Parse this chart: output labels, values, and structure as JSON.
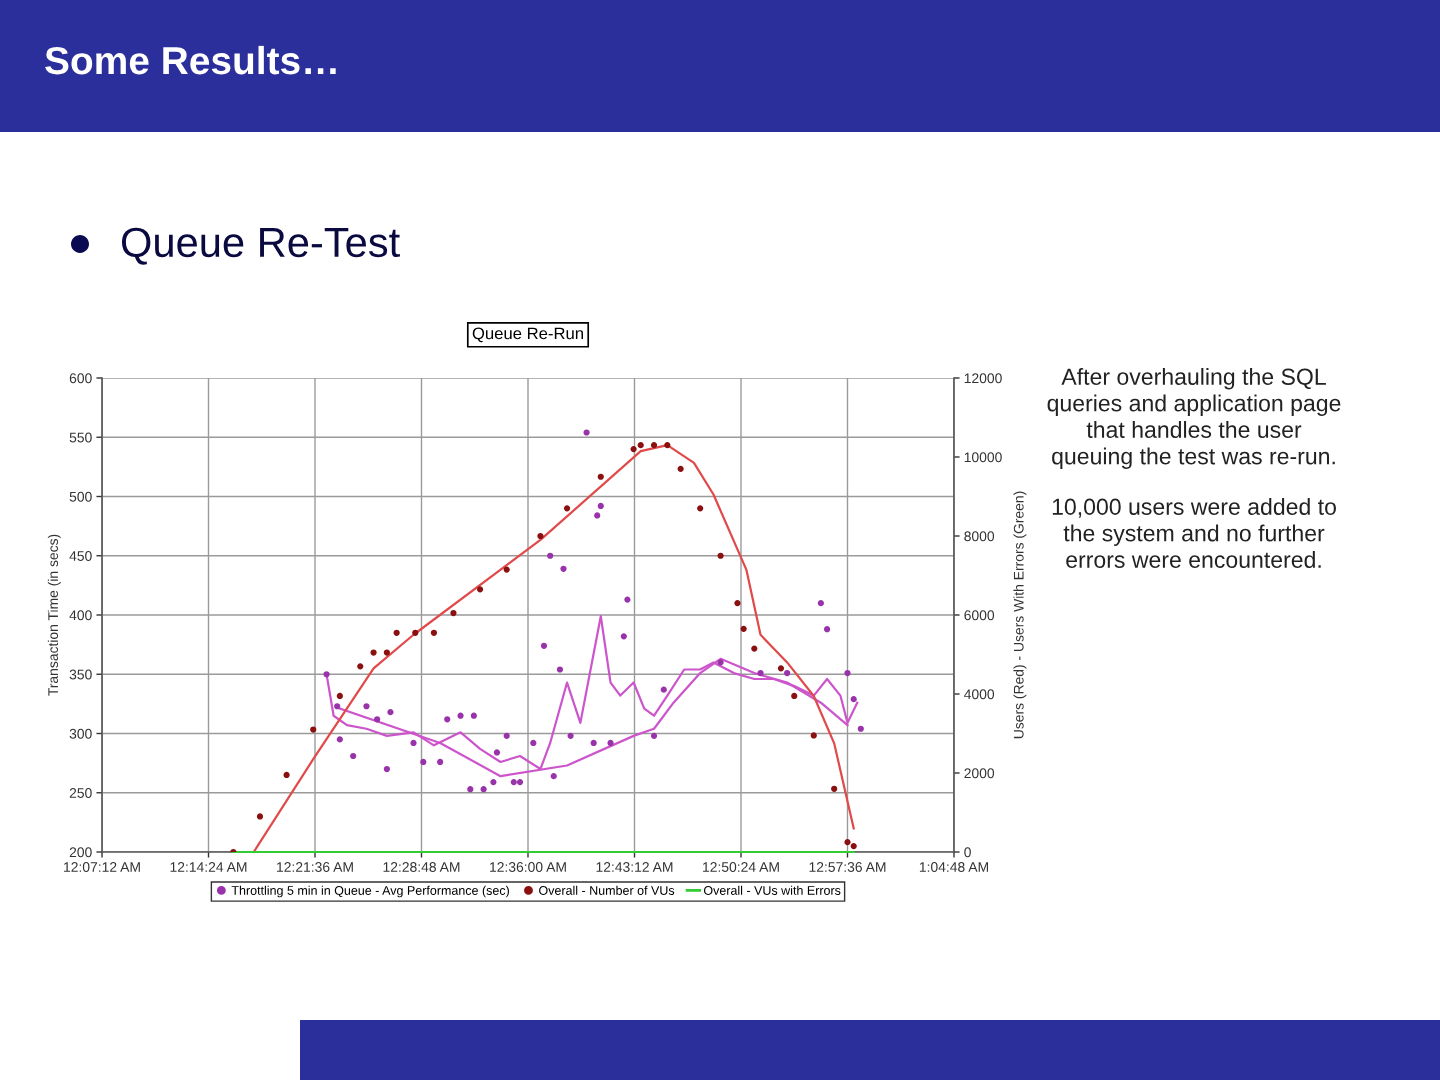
{
  "chart_data": {
    "type": "scatter",
    "title": "Queue Re-Run",
    "ylabel": "Transaction Time (in secs)",
    "y2label": "Users (Red) - Users With Errors (Green)",
    "annotations": [
      "Some Results…",
      "Queue Re-Test",
      "After overhauling the SQL queries and application page that handles the user queuing the test was re-run.",
      "10,000 users were added to the system and no further errors were encountered."
    ],
    "xlim": [
      0.12,
      1.08
    ],
    "xticks": [
      {
        "value": 0.12,
        "label": "12:07:12 AM"
      },
      {
        "value": 0.24,
        "label": "12:14:24 AM"
      },
      {
        "value": 0.36,
        "label": "12:21:36 AM"
      },
      {
        "value": 0.48,
        "label": "12:28:48 AM"
      },
      {
        "value": 0.6,
        "label": "12:36:00 AM"
      },
      {
        "value": 0.72,
        "label": "12:43:12 AM"
      },
      {
        "value": 0.84,
        "label": "12:50:24 AM"
      },
      {
        "value": 0.96,
        "label": "12:57:36 AM"
      },
      {
        "value": 1.08,
        "label": "1:04:48 AM"
      }
    ],
    "ylim": [
      200,
      600
    ],
    "yticks": [
      200,
      250,
      300,
      350,
      400,
      450,
      500,
      550,
      600
    ],
    "y2lim": [
      0,
      12000
    ],
    "y2ticks": [
      0,
      2000,
      4000,
      6000,
      8000,
      10000,
      12000
    ],
    "grid": true,
    "legend": "bottom",
    "line_style": "solid",
    "series": [
      {
        "name": "Throttling 5 min in Queue - Avg Performance (sec)",
        "marker": "circle",
        "color": "#9933aa",
        "x": [
          0.373,
          0.385,
          0.388,
          0.403,
          0.418,
          0.43,
          0.445,
          0.441,
          0.471,
          0.482,
          0.501,
          0.509,
          0.524,
          0.539,
          0.535,
          0.55,
          0.561,
          0.565,
          0.584,
          0.576,
          0.606,
          0.591,
          0.618,
          0.625,
          0.629,
          0.636,
          0.64,
          0.648,
          0.666,
          0.674,
          0.678,
          0.682,
          0.693,
          0.708,
          0.712,
          0.742,
          0.753,
          0.817,
          0.862,
          0.892,
          0.93,
          0.937,
          0.96,
          0.967,
          0.975
        ],
        "values": [
          350,
          323,
          295,
          281,
          323,
          312,
          318,
          270,
          292,
          276,
          276,
          312,
          315,
          315,
          253,
          253,
          259,
          284,
          259,
          298,
          292,
          259,
          374,
          450,
          264,
          354,
          439,
          298,
          554,
          292,
          484,
          492,
          292,
          382,
          413,
          298,
          337,
          360,
          351,
          351,
          410,
          388,
          351,
          329,
          304
        ]
      },
      {
        "type": "line",
        "color": "#cc55cc",
        "x": [
          0.373,
          0.381,
          0.396,
          0.418,
          0.441,
          0.471,
          0.494,
          0.524,
          0.546,
          0.569,
          0.591,
          0.614,
          0.625,
          0.644,
          0.659,
          0.682,
          0.693,
          0.704,
          0.719,
          0.731,
          0.742,
          0.757,
          0.776,
          0.794,
          0.809,
          0.832,
          0.855,
          0.877,
          0.9,
          0.922,
          0.937,
          0.952,
          0.96,
          0.971
        ],
        "values": [
          350,
          315,
          307,
          304,
          298,
          301,
          290,
          301,
          287,
          276,
          281,
          270,
          292,
          343,
          309,
          399,
          343,
          332,
          343,
          321,
          315,
          332,
          354,
          354,
          360,
          351,
          346,
          346,
          340,
          332,
          346,
          332,
          309,
          326
        ]
      },
      {
        "type": "line",
        "color": "#cc55cc",
        "x": [
          0.388,
          0.501,
          0.569,
          0.644,
          0.719,
          0.742,
          0.764,
          0.794,
          0.817,
          0.855,
          0.892,
          0.93,
          0.96
        ],
        "values": [
          321,
          292,
          264,
          273,
          298,
          304,
          326,
          351,
          363,
          351,
          343,
          326,
          307
        ]
      },
      {
        "name": "Overall - Number of VUs",
        "marker": "circle",
        "axis": "y2",
        "color": "#8b1010",
        "x": [
          0.268,
          0.298,
          0.328,
          0.358,
          0.388,
          0.411,
          0.426,
          0.441,
          0.452,
          0.473,
          0.494,
          0.516,
          0.546,
          0.576,
          0.614,
          0.644,
          0.682,
          0.719,
          0.727,
          0.742,
          0.757,
          0.772,
          0.794,
          0.817,
          0.836,
          0.843,
          0.855,
          0.885,
          0.9,
          0.922,
          0.945,
          0.96,
          0.967
        ],
        "values": [
          0,
          900,
          1950,
          3100,
          3950,
          4700,
          5050,
          5050,
          5550,
          5550,
          5550,
          6050,
          6650,
          7150,
          8000,
          8700,
          9500,
          10200,
          10300,
          10300,
          10300,
          9700,
          8700,
          7500,
          6300,
          5650,
          5150,
          4650,
          3950,
          2950,
          1600,
          250,
          150
        ]
      },
      {
        "type": "line",
        "axis": "y2",
        "color": "#e04a4a",
        "x": [
          0.291,
          0.358,
          0.426,
          0.471,
          0.614,
          0.727,
          0.757,
          0.787,
          0.809,
          0.846,
          0.862,
          0.892,
          0.922,
          0.945,
          0.967
        ],
        "values": [
          0,
          2350,
          4650,
          5500,
          7900,
          10150,
          10300,
          9850,
          9050,
          7150,
          5500,
          4800,
          3950,
          2750,
          600
        ]
      },
      {
        "name": "Overall - VUs with Errors",
        "type": "line",
        "axis": "y2",
        "color": "#33cc33",
        "x": [
          0.268,
          0.967
        ],
        "values": [
          0,
          0
        ]
      }
    ]
  }
}
